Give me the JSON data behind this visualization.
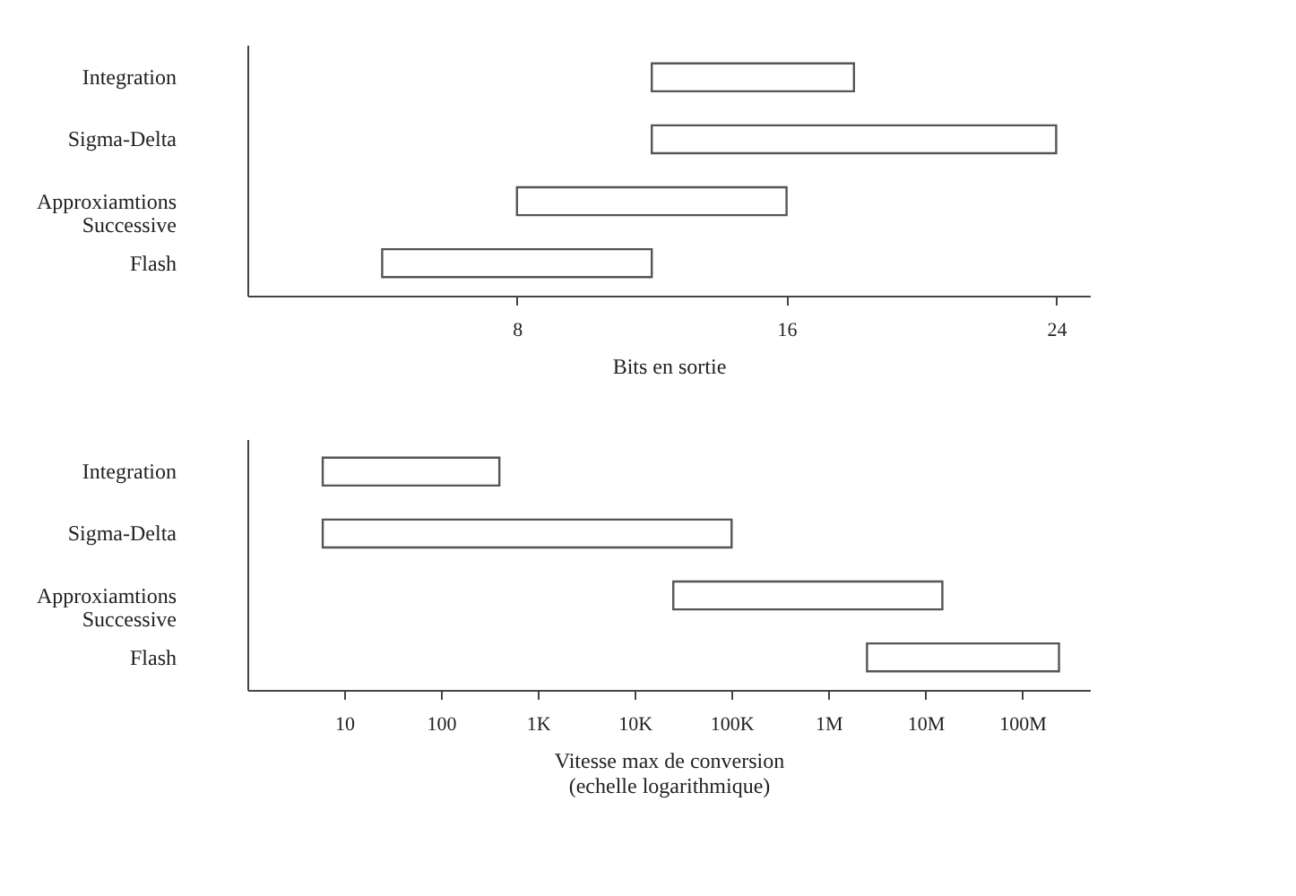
{
  "chart_data": [
    {
      "type": "bar",
      "orientation": "horizontal",
      "categories": [
        "Integration",
        "Sigma-Delta",
        "Approxiamtions Successive",
        "Flash"
      ],
      "base": [
        12,
        12,
        8,
        4
      ],
      "values": [
        6,
        12,
        8,
        8
      ],
      "color": "#555555",
      "xlabel": "Bits en sortie",
      "xlim": [
        0,
        25
      ],
      "xticks": [
        8,
        16,
        24
      ],
      "grid": false
    },
    {
      "type": "bar",
      "orientation": "horizontal",
      "categories": [
        "Integration",
        "Sigma-Delta",
        "Approxiamtions Successive",
        "Flash"
      ],
      "base": [
        6,
        6,
        25000,
        2500000
      ],
      "values": [
        394,
        99994,
        14975000,
        237500000
      ],
      "color": "#555555",
      "xlabel": "Vitesse max de conversion\n(echelle logarithmique)",
      "log": "x",
      "xlim": [
        1,
        500000000
      ],
      "xticks": [
        10,
        100,
        {
          "value": 1000,
          "label": "1K"
        },
        {
          "value": 10000,
          "label": "10K"
        },
        {
          "value": 100000,
          "label": "100K"
        },
        {
          "value": 1000000,
          "label": "1M"
        },
        {
          "value": 10000000,
          "label": "10M"
        },
        {
          "value": 100000000,
          "label": "100M"
        }
      ],
      "grid": false
    }
  ]
}
